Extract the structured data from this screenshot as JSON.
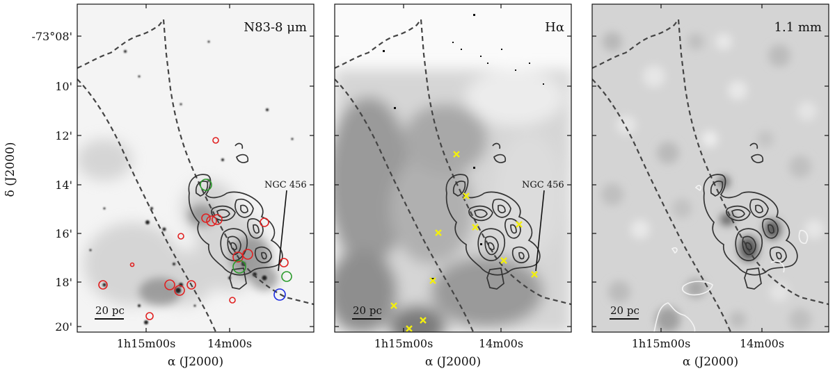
{
  "panels": [
    {
      "id": "ir",
      "label": "N83-8 μm",
      "annotation": "NGC 456",
      "scalebar": "20 pc"
    },
    {
      "id": "halpha",
      "label": "Hα",
      "annotation": "NGC 456",
      "scalebar": "20 pc"
    },
    {
      "id": "mm",
      "label": "1.1 mm",
      "annotation": "",
      "scalebar": "20 pc"
    }
  ],
  "axes": {
    "xlabel": "α (J2000)",
    "ylabel": "δ (J2000)",
    "xticks": [
      "1h15m00s",
      "14m00s"
    ],
    "yticks": [
      "-73°08'",
      "10'",
      "12'",
      "14'",
      "16'",
      "18'",
      "20'"
    ]
  },
  "colors": {
    "contour": "#333333",
    "dashed": "#444444",
    "red_circle": "#e02020",
    "green_circle": "#2a9a2a",
    "blue_circle": "#1a2ae0",
    "yellow_cross": "#f2ee10",
    "white_contour": "#f4f4f4"
  }
}
